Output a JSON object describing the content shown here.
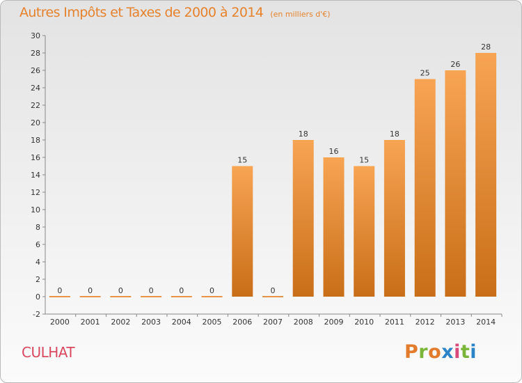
{
  "header": {
    "title": "Autres Impôts et Taxes de 2000 à 2014",
    "subtitle": "(en milliers d'€)"
  },
  "footer": {
    "commune": "CULHAT",
    "logo_letters": [
      "P",
      "r",
      "o",
      "x",
      "i",
      "t",
      "i"
    ]
  },
  "colors": {
    "title": "#e6822c",
    "commune": "#d9485f",
    "bar_light": "#f7a453",
    "bar_dark": "#c96e18",
    "logo": [
      "#e37b2d",
      "#7bb63b",
      "#e37b2d",
      "#2c84c7",
      "#d84a7a",
      "#7bb63b",
      "#2c84c7"
    ]
  },
  "chart_data": {
    "type": "bar",
    "title": "Autres Impôts et Taxes de 2000 à 2014",
    "subtitle": "(en milliers d'€)",
    "categories": [
      "2000",
      "2001",
      "2002",
      "2003",
      "2004",
      "2005",
      "2006",
      "2007",
      "2008",
      "2009",
      "2010",
      "2011",
      "2012",
      "2013",
      "2014"
    ],
    "values": [
      0,
      0,
      0,
      0,
      0,
      0,
      15,
      0,
      18,
      16,
      15,
      18,
      25,
      26,
      28
    ],
    "ylim": [
      -2,
      30
    ],
    "yticks": [
      "-2",
      "0",
      "2",
      "4",
      "6",
      "8",
      "10",
      "12",
      "14",
      "16",
      "18",
      "20",
      "22",
      "24",
      "26",
      "28",
      "30"
    ],
    "grid": false,
    "legend": "none"
  }
}
